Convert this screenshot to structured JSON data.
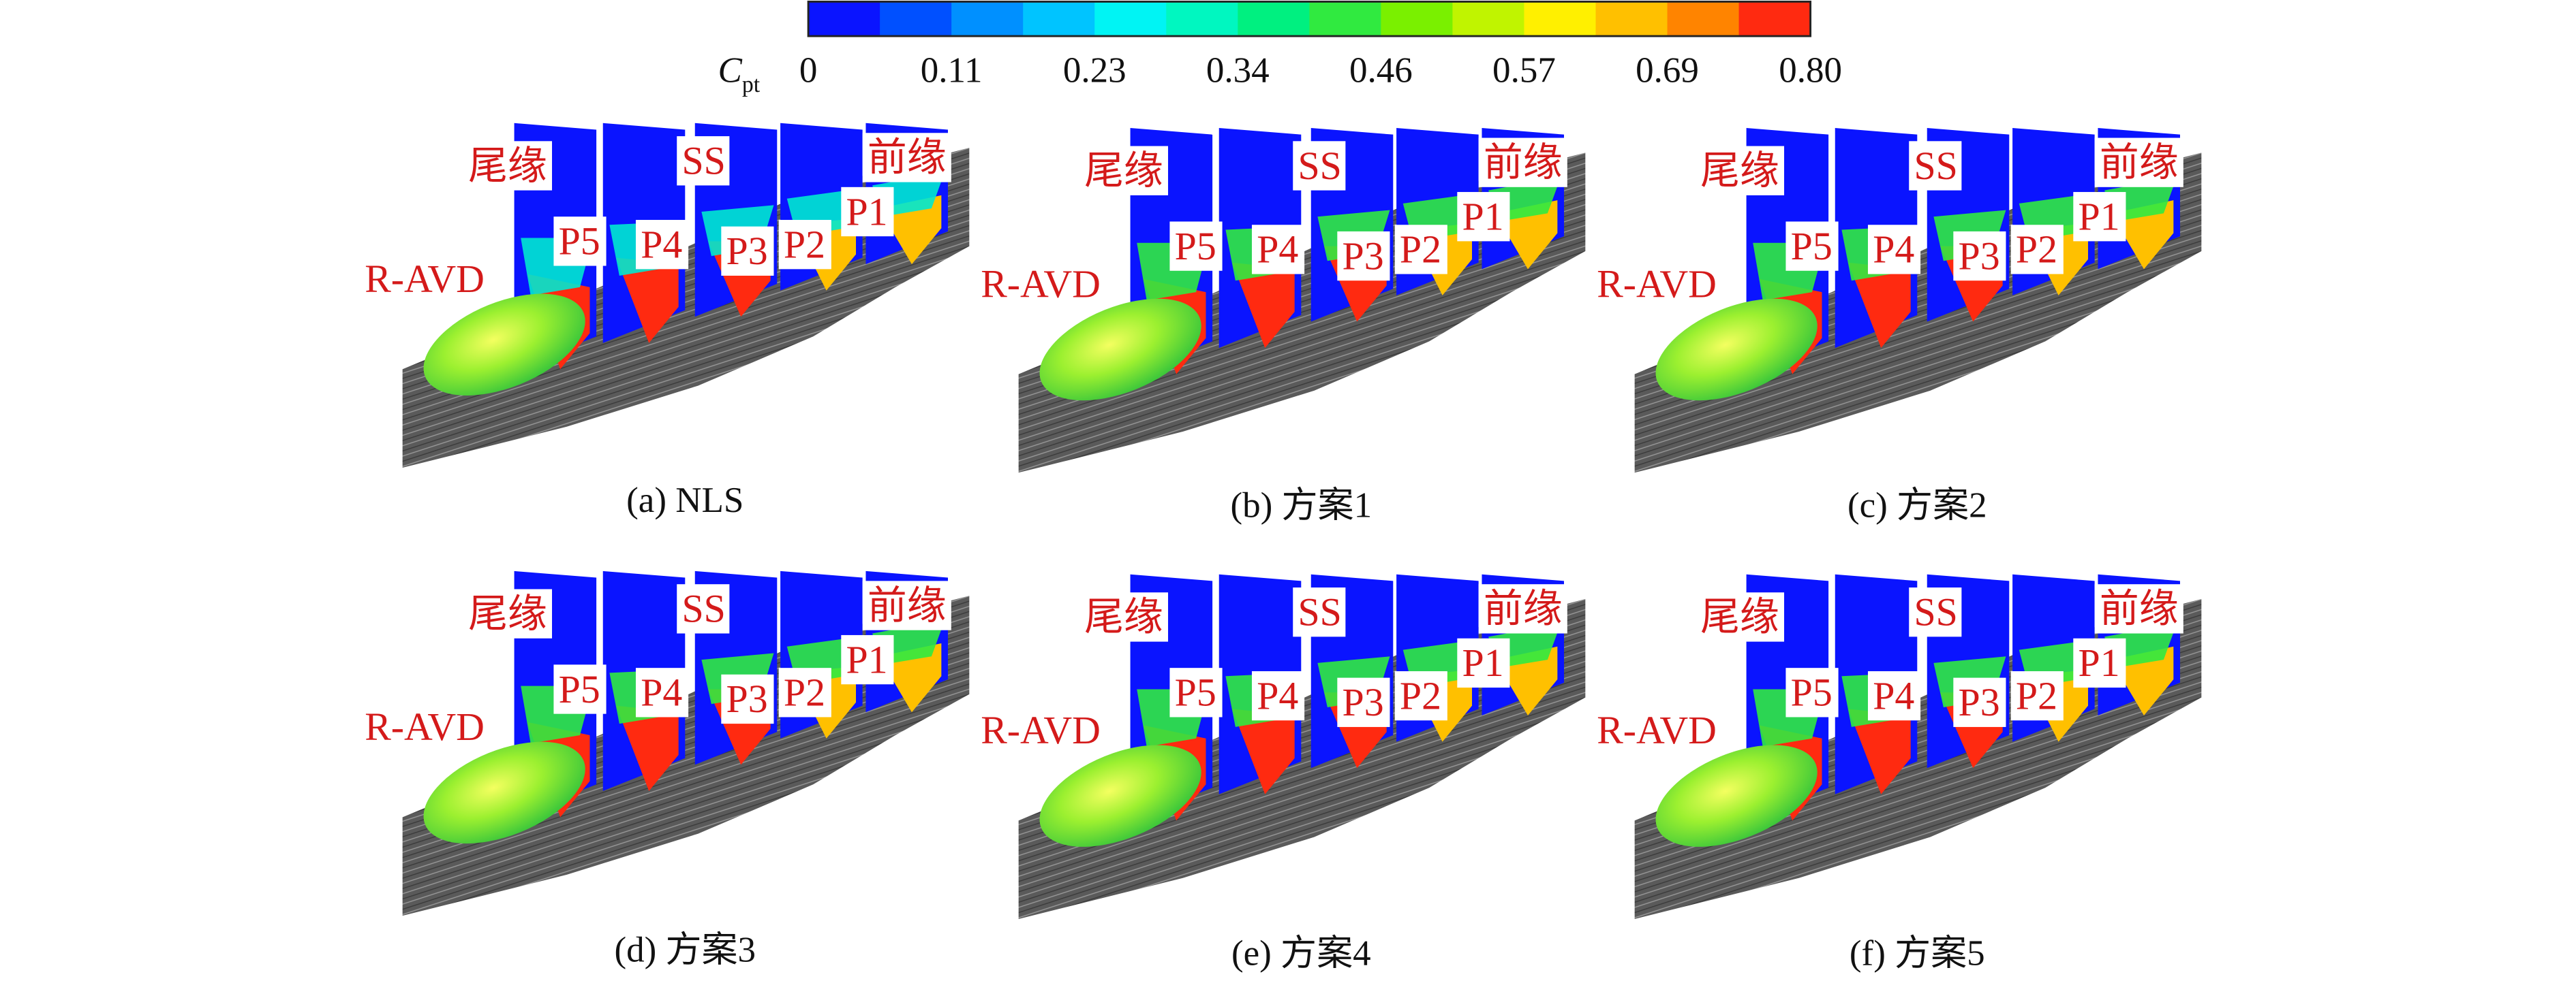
{
  "colorbar": {
    "label": {
      "symbol": "C",
      "subscript": "pt"
    },
    "ticks": [
      "0",
      "0.11",
      "0.23",
      "0.34",
      "0.46",
      "0.57",
      "0.69",
      "0.80"
    ],
    "colors": [
      "#0a14ff",
      "#0050ff",
      "#0090ff",
      "#00c4ff",
      "#00f4f4",
      "#00f7c0",
      "#00f080",
      "#30ea40",
      "#7af000",
      "#c0f400",
      "#fff000",
      "#ffc000",
      "#ff8400",
      "#ff2a10"
    ]
  },
  "panels": [
    {
      "caption": "(a) NLS",
      "labels": {
        "trailing_edge": "尾缘",
        "ss": "SS",
        "leading_edge": "前缘",
        "p5": "P5",
        "p4": "P4",
        "p3": "P3",
        "p2": "P2",
        "p1": "P1",
        "ravd": "R-AVD"
      }
    },
    {
      "caption": "(b) 方案1",
      "labels": {
        "trailing_edge": "尾缘",
        "ss": "SS",
        "leading_edge": "前缘",
        "p5": "P5",
        "p4": "P4",
        "p3": "P3",
        "p2": "P2",
        "p1": "P1",
        "ravd": "R-AVD"
      }
    },
    {
      "caption": "(c) 方案2",
      "labels": {
        "trailing_edge": "尾缘",
        "ss": "SS",
        "leading_edge": "前缘",
        "p5": "P5",
        "p4": "P4",
        "p3": "P3",
        "p2": "P2",
        "p1": "P1",
        "ravd": "R-AVD"
      }
    },
    {
      "caption": "(d) 方案3",
      "labels": {
        "trailing_edge": "尾缘",
        "ss": "SS",
        "leading_edge": "前缘",
        "p5": "P5",
        "p4": "P4",
        "p3": "P3",
        "p2": "P2",
        "p1": "P1",
        "ravd": "R-AVD"
      }
    },
    {
      "caption": "(e) 方案4",
      "labels": {
        "trailing_edge": "尾缘",
        "ss": "SS",
        "leading_edge": "前缘",
        "p5": "P5",
        "p4": "P4",
        "p3": "P3",
        "p2": "P2",
        "p1": "P1",
        "ravd": "R-AVD"
      }
    },
    {
      "caption": "(f) 方案5",
      "labels": {
        "trailing_edge": "尾缘",
        "ss": "SS",
        "leading_edge": "前缘",
        "p5": "P5",
        "p4": "P4",
        "p3": "P3",
        "p2": "P2",
        "p1": "P1",
        "ravd": "R-AVD"
      }
    }
  ]
}
